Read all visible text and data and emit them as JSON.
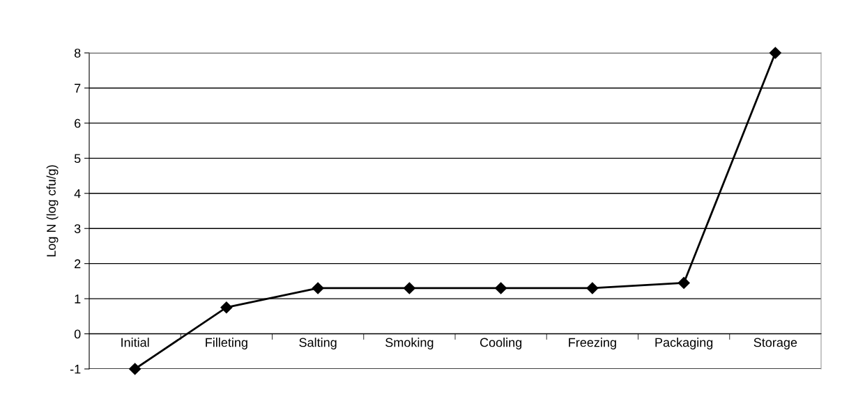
{
  "chart_data": {
    "type": "line",
    "ylabel": "Log N (log cfu/g)",
    "categories": [
      "Initial",
      "Filleting",
      "Salting",
      "Smoking",
      "Cooling",
      "Freezing",
      "Packaging",
      "Storage"
    ],
    "series": [
      {
        "color": "#000000",
        "values": [
          -1,
          0.75,
          1.3,
          1.3,
          1.3,
          1.3,
          1.45,
          8.0
        ]
      }
    ],
    "ylim": [
      -1,
      8
    ],
    "yticks": [
      -1,
      0,
      1,
      2,
      3,
      4,
      5,
      6,
      7,
      8
    ],
    "grid": "y",
    "marker": "diamond",
    "line_style": "solid",
    "legend": false
  }
}
